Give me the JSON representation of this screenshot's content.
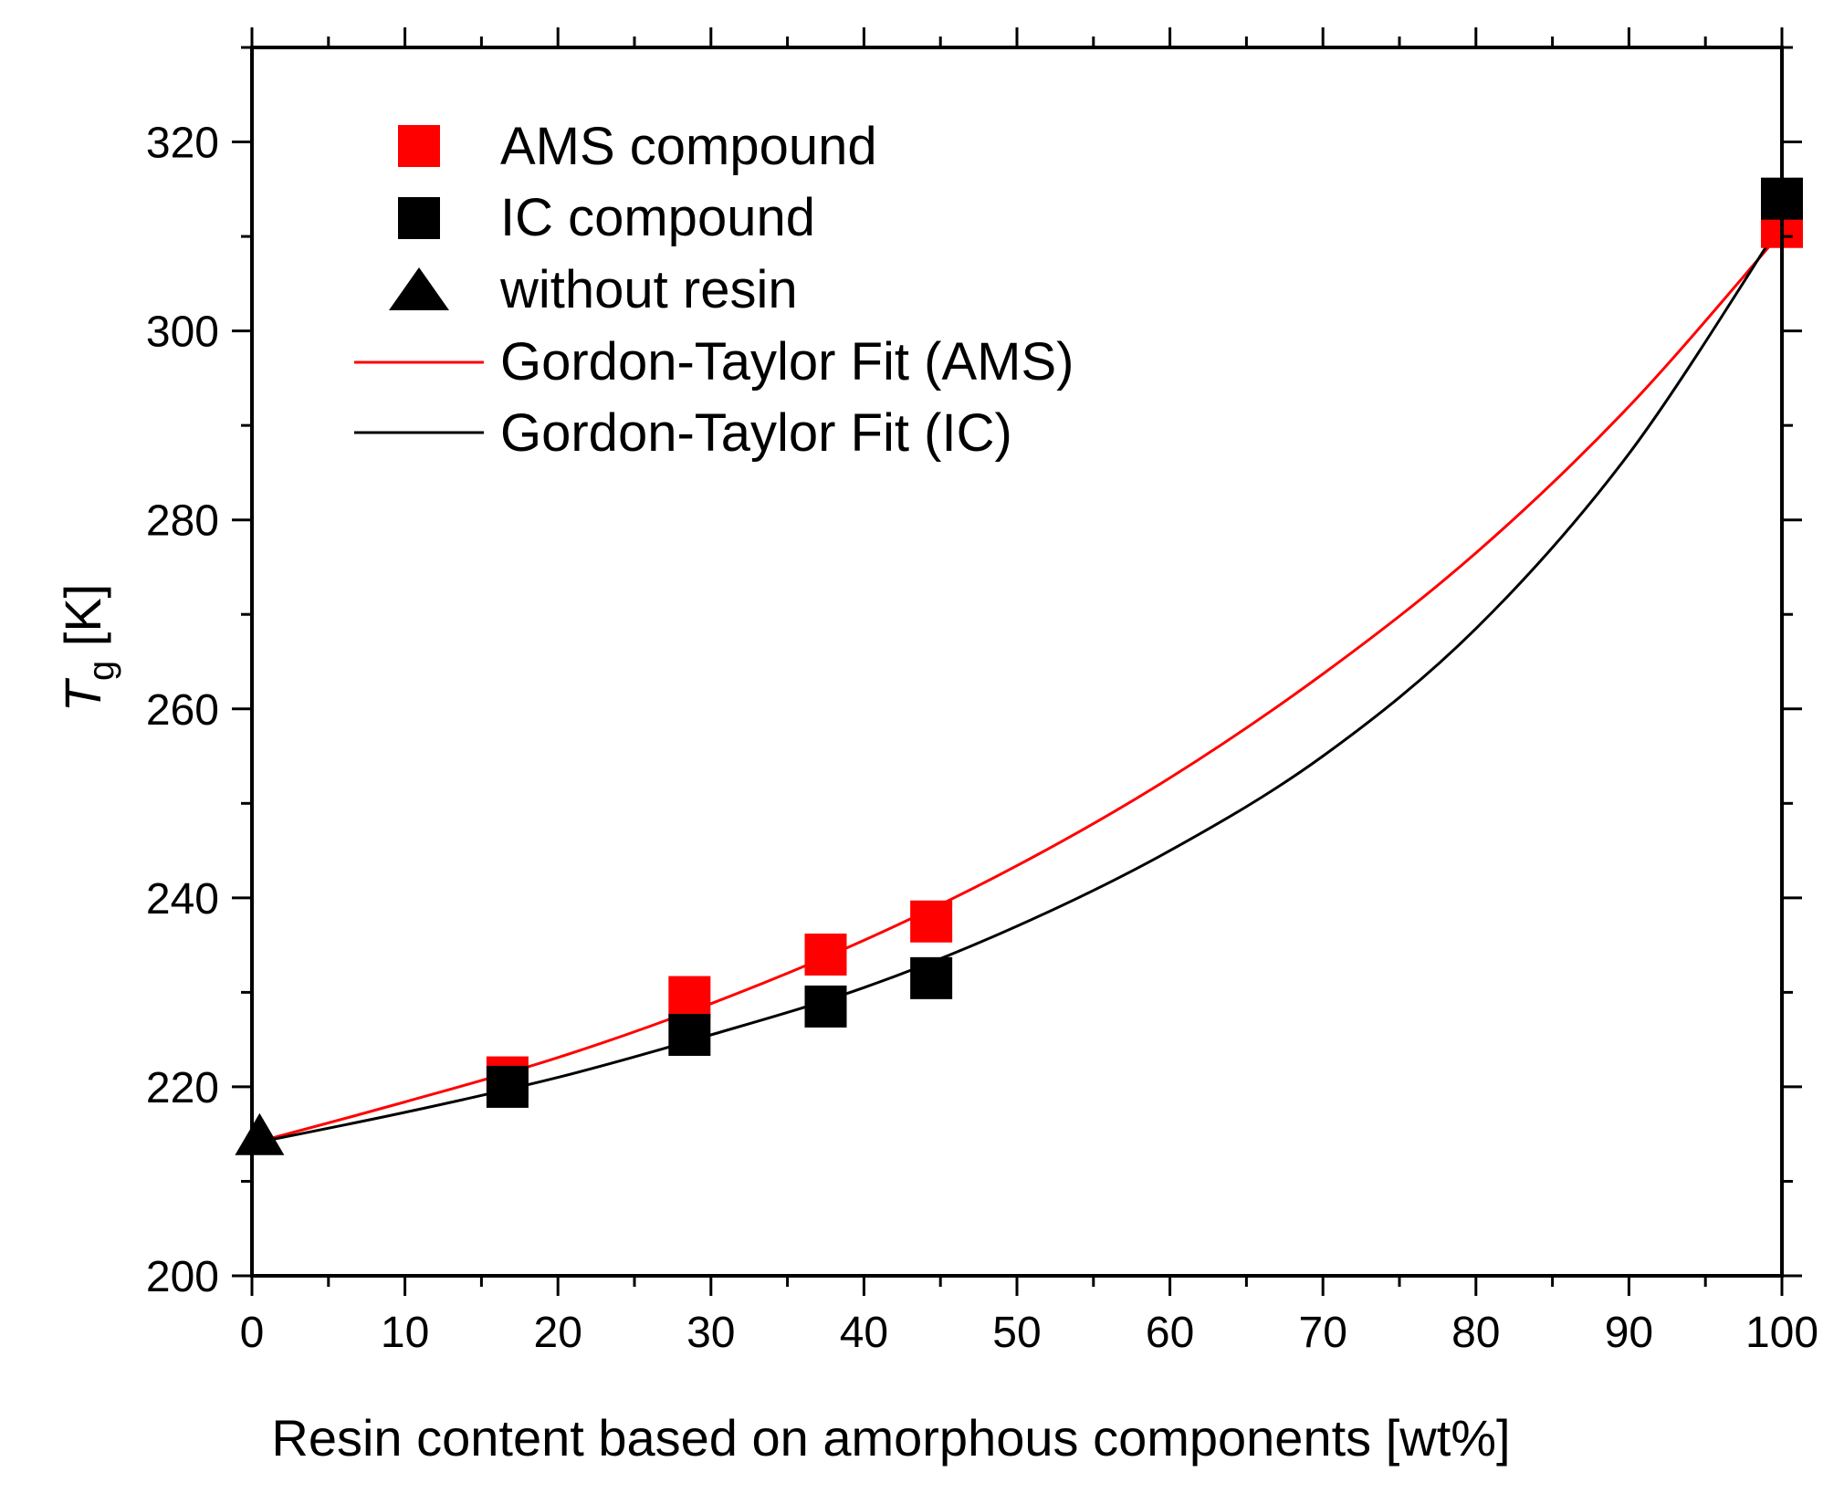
{
  "chart_data": {
    "type": "scatter",
    "xlabel": "Resin content based on amorphous components [wt%]",
    "ylabel_main": "T",
    "ylabel_sub": "g",
    "ylabel_unit": " [K]",
    "xlim": [
      0,
      100
    ],
    "ylim": [
      200,
      330
    ],
    "x_ticks": [
      0,
      10,
      20,
      30,
      40,
      50,
      60,
      70,
      80,
      90,
      100
    ],
    "x_tick_labels": [
      "0",
      "10",
      "20",
      "30",
      "40",
      "50",
      "60",
      "70",
      "80",
      "90",
      "100"
    ],
    "y_ticks": [
      200,
      220,
      240,
      260,
      280,
      300,
      320
    ],
    "y_tick_labels": [
      "200",
      "220",
      "240",
      "260",
      "280",
      "300",
      "320"
    ],
    "legend_position": "top-left",
    "series": [
      {
        "name": "AMS compound",
        "kind": "square",
        "color": "#ff0000",
        "x": [
          16.7,
          28.6,
          37.5,
          44.4,
          100
        ],
        "y": [
          221,
          229.5,
          234,
          237.5,
          311
        ]
      },
      {
        "name": "IC compound",
        "kind": "square",
        "color": "#000000",
        "x": [
          16.7,
          28.6,
          37.5,
          44.4,
          100
        ],
        "y": [
          220,
          225.5,
          228.5,
          231.5,
          314
        ]
      },
      {
        "name": "without resin",
        "kind": "triangle",
        "color": "#000000",
        "x": [
          0.5
        ],
        "y": [
          215
        ]
      }
    ],
    "fits": [
      {
        "name": "Gordon-Taylor Fit (AMS)",
        "color": "#ff0000",
        "x": [
          0,
          10,
          20,
          30,
          40,
          50,
          60,
          70,
          80,
          90,
          100
        ],
        "y": [
          214,
          218.4,
          223.1,
          228.8,
          235.5,
          243.4,
          252.7,
          263.7,
          276.5,
          292,
          310.5
        ]
      },
      {
        "name": "Gordon-Taylor Fit (IC)",
        "color": "#000000",
        "x": [
          0,
          10,
          20,
          30,
          40,
          50,
          60,
          70,
          80,
          90,
          100
        ],
        "y": [
          214,
          217.3,
          221,
          225.5,
          230.5,
          237,
          245,
          255,
          268.5,
          287,
          311.5
        ]
      }
    ]
  }
}
